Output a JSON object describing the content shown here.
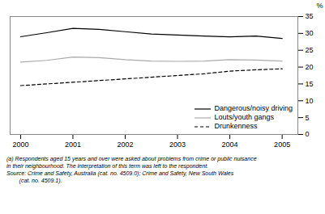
{
  "chart_data": {
    "type": "line",
    "x": [
      2000,
      2000.5,
      2001,
      2001.5,
      2002,
      2002.5,
      2003,
      2003.5,
      2004,
      2004.5,
      2005
    ],
    "series": [
      {
        "name": "Dangerous/noisy driving",
        "color": "#000000",
        "line_style": "solid",
        "values": [
          29.0,
          30.2,
          31.5,
          31.2,
          30.5,
          29.8,
          29.5,
          29.2,
          29.0,
          29.2,
          28.5
        ]
      },
      {
        "name": "Louts/youth gangs",
        "color": "#aaaaaa",
        "line_style": "solid",
        "values": [
          21.5,
          22.0,
          23.0,
          22.8,
          22.2,
          21.8,
          21.7,
          21.8,
          22.2,
          22.1,
          21.8
        ]
      },
      {
        "name": "Drunkenness",
        "color": "#000000",
        "line_style": "dashed",
        "values": [
          14.5,
          15.0,
          15.5,
          16.0,
          16.5,
          17.0,
          17.5,
          18.0,
          18.8,
          19.2,
          19.5
        ]
      }
    ],
    "xlim": [
      1999.8,
      2005.3
    ],
    "xticks": [
      2000,
      2001,
      2002,
      2003,
      2004,
      2005
    ],
    "ylim": [
      0,
      35
    ],
    "yticks": [
      0,
      5,
      10,
      15,
      20,
      25,
      30,
      35
    ],
    "ylabel": "%",
    "grid": false,
    "legend": "lower right",
    "annotations": [
      "(a) Respondents aged 15 years and over were asked about problems from crime or public nuisance",
      "in their neighbourhood. The interpretation of this term was left to the respondent.",
      "Source: Crime and Safety, Australia (cat. no. 4509.0); Crime and Safety, New South Wales",
      "        (cat. no. 4509.1)."
    ]
  }
}
